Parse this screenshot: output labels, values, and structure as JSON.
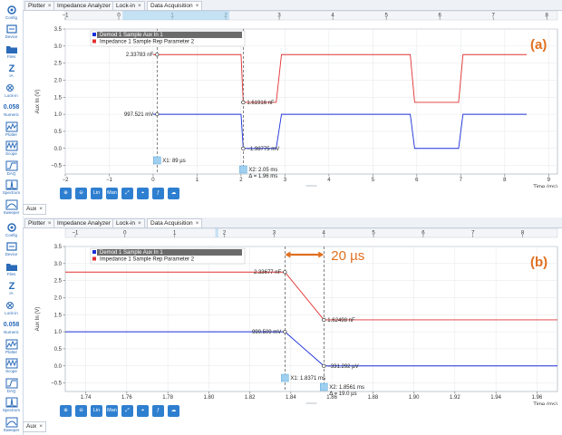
{
  "tabs": [
    {
      "label": "Plotter"
    },
    {
      "label": "Impedance Analyzer"
    },
    {
      "label": "Lock-in"
    },
    {
      "label": "Data Acquisition"
    }
  ],
  "tab_close": "×",
  "bottom_tab": "Aux",
  "sidebar": {
    "items": [
      {
        "label": "Config",
        "icon": "gear-icon"
      },
      {
        "label": "Device",
        "icon": "device-icon"
      },
      {
        "label": "Files",
        "icon": "folder-icon"
      },
      {
        "label": "IA",
        "icon": "impedance-icon"
      },
      {
        "label": "Lock-in",
        "icon": "lockin-icon"
      },
      {
        "label": "Numeric",
        "icon": "numeric-icon"
      },
      {
        "label": "Plotter",
        "icon": "plotter-icon"
      },
      {
        "label": "Scope",
        "icon": "scope-icon"
      },
      {
        "label": "DAQ",
        "icon": "daq-icon"
      },
      {
        "label": "Spectrum",
        "icon": "spectrum-icon"
      },
      {
        "label": "Sweeper",
        "icon": "sweeper-icon"
      }
    ],
    "numeric_value": "0.058",
    "mf_badge": "MF",
    "diff_badge": "DIFF",
    "z_glyph": "Z",
    "man": "Man",
    "lin": "Lin",
    "log_badge": "LOG"
  },
  "toolbar": [
    "Lin",
    "Man"
  ],
  "colors": {
    "accent": "#2f7fd0",
    "red": "#e23030",
    "blue": "#1a2fd8",
    "annotation": "#e07020",
    "cursor_box": "#9fd0f0"
  },
  "chart_data": [
    {
      "panel_label": "(a)",
      "type": "line",
      "ylabel": "Aux In (V)",
      "xlabel": "Time (ms)",
      "xlim": [
        -2,
        9.2
      ],
      "ylim": [
        -0.75,
        3.5
      ],
      "top_xlim": [
        -1,
        8.2
      ],
      "x_ticks": [
        -2,
        -1,
        0,
        1,
        2,
        3,
        4,
        5,
        6,
        7,
        8,
        9
      ],
      "x_tick_labels": [
        "−2",
        "−1",
        "0",
        "1",
        "2",
        "3",
        "4",
        "5",
        "6",
        "7",
        "8",
        "9"
      ],
      "top_x_ticks": [
        -1,
        0,
        1,
        2,
        3,
        4,
        5,
        6,
        7,
        8
      ],
      "top_x_tick_labels": [
        "−1",
        "0",
        "1",
        "2",
        "3",
        "4",
        "5",
        "6",
        "7",
        "8"
      ],
      "y_ticks": [
        -0.5,
        0,
        0.5,
        1,
        1.5,
        2,
        2.5,
        3,
        3.5
      ],
      "y_tick_labels": [
        "−0.5",
        "0.0",
        "0.5",
        "1.0",
        "1.5",
        "2.0",
        "2.5",
        "3.0",
        "3.5"
      ],
      "grid": true,
      "legend_placement": "top-left",
      "series": [
        {
          "name": "Demod 1 Sample Aux In 1",
          "color": "#1a2fd8",
          "x": [
            0,
            0.09,
            1.9,
            2.0,
            2.05,
            2.8,
            2.92,
            5.85,
            5.95,
            6.95,
            7.05,
            8.5
          ],
          "y": [
            1.0,
            1.0,
            1.0,
            1.0,
            0.0,
            0.0,
            1.0,
            1.0,
            0.0,
            0.0,
            1.0,
            1.0
          ]
        },
        {
          "name": "Impedance 1 Sample Rep Parameter 2",
          "color": "#e23030",
          "x": [
            0,
            0.09,
            1.9,
            2.0,
            2.05,
            2.8,
            2.92,
            5.85,
            5.95,
            6.95,
            7.05,
            8.5
          ],
          "y": [
            2.75,
            2.75,
            2.75,
            2.75,
            1.35,
            1.35,
            2.75,
            2.75,
            1.35,
            1.35,
            2.75,
            2.75
          ]
        }
      ],
      "cursors": [
        {
          "label": "X1: 89 µs",
          "x": 0.089
        },
        {
          "label": "X2: 2.05 ms",
          "delta": "Δ = 1.96 ms",
          "x": 2.05
        }
      ],
      "markers": [
        {
          "label": "2.33783 nF",
          "x": 0.089,
          "y": 2.75,
          "side": "left"
        },
        {
          "label": "997.521 mV",
          "x": 0.089,
          "y": 1.0,
          "side": "left"
        },
        {
          "label": "1.61916 nF",
          "x": 2.05,
          "y": 1.35,
          "side": "right"
        },
        {
          "label": "−1.98775 mV",
          "x": 2.05,
          "y": 0.0,
          "side": "right"
        }
      ]
    },
    {
      "panel_label": "(b)",
      "type": "line",
      "ylabel": "Aux In (V)",
      "xlabel": "Time (ms)",
      "xlim": [
        1.73,
        1.97
      ],
      "ylim": [
        -0.75,
        3.5
      ],
      "top_xlim": [
        -1.2,
        8.7
      ],
      "x_ticks": [
        1.74,
        1.76,
        1.78,
        1.8,
        1.82,
        1.84,
        1.86,
        1.88,
        1.9,
        1.92,
        1.94,
        1.96
      ],
      "x_tick_labels": [
        "1.74",
        "1.76",
        "1.78",
        "1.80",
        "1.82",
        "1.84",
        "1.86",
        "1.88",
        "1.90",
        "1.92",
        "1.94",
        "1.96"
      ],
      "top_x_ticks": [
        -1,
        0,
        1,
        2,
        3,
        4,
        5,
        6,
        7,
        8
      ],
      "top_x_tick_labels": [
        "−1",
        "0",
        "1",
        "2",
        "3",
        "4",
        "5",
        "6",
        "7",
        "8"
      ],
      "y_ticks": [
        -0.5,
        0,
        0.5,
        1,
        1.5,
        2,
        2.5,
        3,
        3.5
      ],
      "y_tick_labels": [
        "−0.5",
        "0.0",
        "0.5",
        "1.0",
        "1.5",
        "2.0",
        "2.5",
        "3.0",
        "3.5"
      ],
      "grid": true,
      "legend_placement": "top-left",
      "series": [
        {
          "name": "Demod 1 Sample Aux In 1",
          "color": "#1a2fd8",
          "x": [
            1.73,
            1.8371,
            1.8561,
            1.97
          ],
          "y": [
            1.0,
            1.0,
            0.0,
            0.0
          ]
        },
        {
          "name": "Impedance 1 Sample Rep Parameter 2",
          "color": "#e23030",
          "x": [
            1.73,
            1.8371,
            1.8561,
            1.97
          ],
          "y": [
            2.75,
            2.75,
            1.35,
            1.35
          ]
        }
      ],
      "cursors": [
        {
          "label": "X1: 1.8371 ms",
          "x": 1.8371
        },
        {
          "label": "X2: 1.8561 ms",
          "delta": "Δ = 19.0 µs",
          "x": 1.8561
        }
      ],
      "markers": [
        {
          "label": "2.33677 nF",
          "x": 1.8371,
          "y": 2.75,
          "side": "left"
        },
        {
          "label": "999.509 mV",
          "x": 1.8371,
          "y": 1.0,
          "side": "left"
        },
        {
          "label": "1.62498 nF",
          "x": 1.8561,
          "y": 1.35,
          "side": "right"
        },
        {
          "label": "−331.292 µV",
          "x": 1.8561,
          "y": 0.0,
          "side": "right"
        }
      ],
      "annotation": "20 µs"
    }
  ]
}
